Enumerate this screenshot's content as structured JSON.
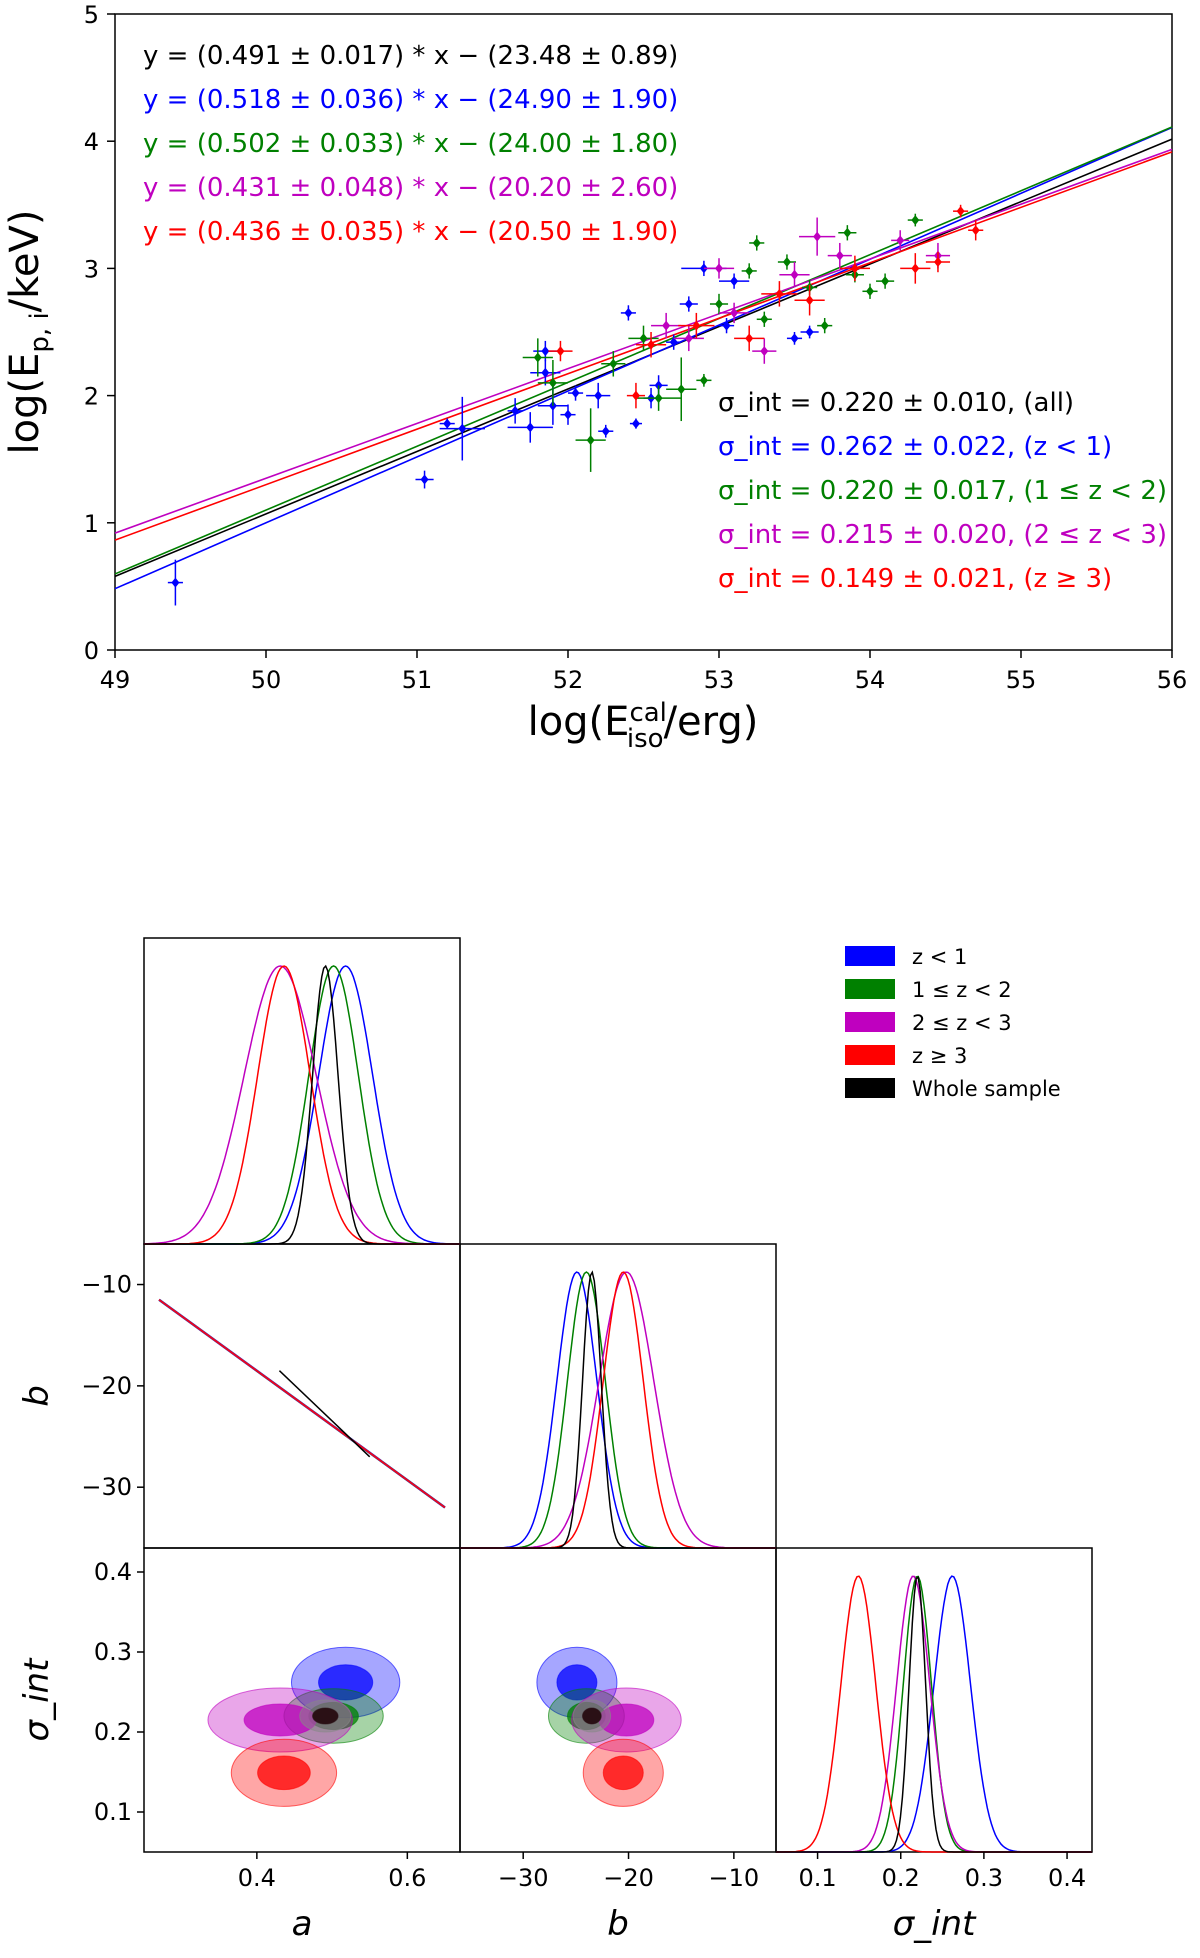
{
  "colors": {
    "blue": "#0000ff",
    "green": "#008000",
    "magenta": "#bf00bf",
    "red": "#ff0000",
    "black": "#000000"
  },
  "chart_data": [
    {
      "type": "scatter",
      "xlabel": "log(E_iso^cal/erg)",
      "ylabel": "log(E_p,i/keV)",
      "xlim": [
        49,
        56
      ],
      "ylim": [
        0,
        5
      ],
      "xticks": [
        "49",
        "50",
        "51",
        "52",
        "53",
        "54",
        "55",
        "56"
      ],
      "yticks": [
        "0",
        "1",
        "2",
        "3",
        "4",
        "5"
      ],
      "fits": [
        {
          "name": "all",
          "color": "black",
          "a": 0.491,
          "b": -23.48,
          "label": "y = (0.491 ± 0.017) * x − (23.48 ± 0.89)"
        },
        {
          "name": "z<1",
          "color": "blue",
          "a": 0.518,
          "b": -24.9,
          "label": "y = (0.518 ± 0.036) * x − (24.90 ± 1.90)"
        },
        {
          "name": "1≤z<2",
          "color": "green",
          "a": 0.502,
          "b": -24.0,
          "label": "y = (0.502 ± 0.033) * x − (24.00 ± 1.80)"
        },
        {
          "name": "2≤z<3",
          "color": "magenta",
          "a": 0.431,
          "b": -20.2,
          "label": "y = (0.431 ± 0.048) * x − (20.20 ± 2.60)"
        },
        {
          "name": "z≥3",
          "color": "red",
          "a": 0.436,
          "b": -20.5,
          "label": "y = (0.436 ± 0.035) * x − (20.50 ± 1.90)"
        }
      ],
      "sigma_labels": [
        {
          "color": "black",
          "text": "σ_int = 0.220 ± 0.010, (all)"
        },
        {
          "color": "blue",
          "text": "σ_int = 0.262 ± 0.022, (z < 1)"
        },
        {
          "color": "green",
          "text": "σ_int = 0.220 ± 0.017, (1 ≤ z < 2)"
        },
        {
          "color": "magenta",
          "text": "σ_int = 0.215 ± 0.020, (2 ≤ z < 3)"
        },
        {
          "color": "red",
          "text": "σ_int = 0.149 ± 0.021, (z ≥ 3)"
        }
      ],
      "points": [
        {
          "c": "blue",
          "x": 49.4,
          "y": 0.53,
          "ex": 0.05,
          "ey": 0.18
        },
        {
          "c": "blue",
          "x": 51.05,
          "y": 1.34,
          "ex": 0.06,
          "ey": 0.07
        },
        {
          "c": "blue",
          "x": 51.2,
          "y": 1.78,
          "ex": 0.05,
          "ey": 0.04
        },
        {
          "c": "blue",
          "x": 51.3,
          "y": 1.74,
          "ex": 0.15,
          "ey": 0.25
        },
        {
          "c": "blue",
          "x": 51.65,
          "y": 1.88,
          "ex": 0.05,
          "ey": 0.1
        },
        {
          "c": "blue",
          "x": 51.75,
          "y": 1.75,
          "ex": 0.15,
          "ey": 0.12
        },
        {
          "c": "blue",
          "x": 51.85,
          "y": 2.35,
          "ex": 0.08,
          "ey": 0.08
        },
        {
          "c": "blue",
          "x": 51.85,
          "y": 2.18,
          "ex": 0.1,
          "ey": 0.1
        },
        {
          "c": "blue",
          "x": 51.9,
          "y": 1.92,
          "ex": 0.1,
          "ey": 0.15
        },
        {
          "c": "blue",
          "x": 52.0,
          "y": 1.85,
          "ex": 0.05,
          "ey": 0.08
        },
        {
          "c": "blue",
          "x": 52.05,
          "y": 2.02,
          "ex": 0.05,
          "ey": 0.06
        },
        {
          "c": "blue",
          "x": 52.25,
          "y": 1.72,
          "ex": 0.05,
          "ey": 0.05
        },
        {
          "c": "blue",
          "x": 52.2,
          "y": 2.0,
          "ex": 0.08,
          "ey": 0.1
        },
        {
          "c": "blue",
          "x": 52.4,
          "y": 2.65,
          "ex": 0.05,
          "ey": 0.06
        },
        {
          "c": "blue",
          "x": 52.45,
          "y": 1.78,
          "ex": 0.04,
          "ey": 0.04
        },
        {
          "c": "blue",
          "x": 52.55,
          "y": 1.98,
          "ex": 0.05,
          "ey": 0.08
        },
        {
          "c": "blue",
          "x": 52.6,
          "y": 2.08,
          "ex": 0.06,
          "ey": 0.08
        },
        {
          "c": "blue",
          "x": 52.7,
          "y": 2.42,
          "ex": 0.05,
          "ey": 0.06
        },
        {
          "c": "blue",
          "x": 52.8,
          "y": 2.72,
          "ex": 0.06,
          "ey": 0.06
        },
        {
          "c": "blue",
          "x": 52.9,
          "y": 3.0,
          "ex": 0.15,
          "ey": 0.06
        },
        {
          "c": "blue",
          "x": 53.05,
          "y": 2.55,
          "ex": 0.05,
          "ey": 0.06
        },
        {
          "c": "blue",
          "x": 53.1,
          "y": 2.9,
          "ex": 0.1,
          "ey": 0.06
        },
        {
          "c": "blue",
          "x": 53.5,
          "y": 2.45,
          "ex": 0.05,
          "ey": 0.05
        },
        {
          "c": "blue",
          "x": 53.6,
          "y": 2.5,
          "ex": 0.06,
          "ey": 0.05
        },
        {
          "c": "green",
          "x": 51.8,
          "y": 2.3,
          "ex": 0.1,
          "ey": 0.15
        },
        {
          "c": "green",
          "x": 51.9,
          "y": 2.1,
          "ex": 0.1,
          "ey": 0.18
        },
        {
          "c": "green",
          "x": 52.15,
          "y": 1.65,
          "ex": 0.1,
          "ey": 0.25
        },
        {
          "c": "green",
          "x": 52.3,
          "y": 2.25,
          "ex": 0.08,
          "ey": 0.1
        },
        {
          "c": "green",
          "x": 52.5,
          "y": 2.45,
          "ex": 0.1,
          "ey": 0.1
        },
        {
          "c": "green",
          "x": 52.6,
          "y": 1.98,
          "ex": 0.15,
          "ey": 0.1
        },
        {
          "c": "green",
          "x": 52.75,
          "y": 2.05,
          "ex": 0.1,
          "ey": 0.25
        },
        {
          "c": "green",
          "x": 52.9,
          "y": 2.12,
          "ex": 0.05,
          "ey": 0.05
        },
        {
          "c": "green",
          "x": 53.0,
          "y": 2.72,
          "ex": 0.06,
          "ey": 0.08
        },
        {
          "c": "green",
          "x": 53.2,
          "y": 2.98,
          "ex": 0.05,
          "ey": 0.06
        },
        {
          "c": "green",
          "x": 53.25,
          "y": 3.2,
          "ex": 0.05,
          "ey": 0.06
        },
        {
          "c": "green",
          "x": 53.3,
          "y": 2.6,
          "ex": 0.05,
          "ey": 0.06
        },
        {
          "c": "green",
          "x": 53.45,
          "y": 3.05,
          "ex": 0.06,
          "ey": 0.06
        },
        {
          "c": "green",
          "x": 53.6,
          "y": 2.85,
          "ex": 0.05,
          "ey": 0.06
        },
        {
          "c": "green",
          "x": 53.7,
          "y": 2.55,
          "ex": 0.05,
          "ey": 0.06
        },
        {
          "c": "green",
          "x": 53.85,
          "y": 3.28,
          "ex": 0.06,
          "ey": 0.06
        },
        {
          "c": "green",
          "x": 53.9,
          "y": 2.95,
          "ex": 0.06,
          "ey": 0.06
        },
        {
          "c": "green",
          "x": 54.0,
          "y": 2.82,
          "ex": 0.05,
          "ey": 0.06
        },
        {
          "c": "green",
          "x": 54.1,
          "y": 2.9,
          "ex": 0.06,
          "ey": 0.06
        },
        {
          "c": "green",
          "x": 54.3,
          "y": 3.38,
          "ex": 0.05,
          "ey": 0.05
        },
        {
          "c": "magenta",
          "x": 52.65,
          "y": 2.55,
          "ex": 0.1,
          "ey": 0.1
        },
        {
          "c": "magenta",
          "x": 52.8,
          "y": 2.45,
          "ex": 0.1,
          "ey": 0.1
        },
        {
          "c": "magenta",
          "x": 53.0,
          "y": 3.0,
          "ex": 0.1,
          "ey": 0.08
        },
        {
          "c": "magenta",
          "x": 53.1,
          "y": 2.65,
          "ex": 0.1,
          "ey": 0.08
        },
        {
          "c": "magenta",
          "x": 53.3,
          "y": 2.35,
          "ex": 0.08,
          "ey": 0.1
        },
        {
          "c": "magenta",
          "x": 53.5,
          "y": 2.95,
          "ex": 0.1,
          "ey": 0.1
        },
        {
          "c": "magenta",
          "x": 53.65,
          "y": 3.25,
          "ex": 0.12,
          "ey": 0.15
        },
        {
          "c": "magenta",
          "x": 53.8,
          "y": 3.1,
          "ex": 0.08,
          "ey": 0.1
        },
        {
          "c": "magenta",
          "x": 54.2,
          "y": 3.22,
          "ex": 0.06,
          "ey": 0.08
        },
        {
          "c": "magenta",
          "x": 54.45,
          "y": 3.1,
          "ex": 0.08,
          "ey": 0.1
        },
        {
          "c": "red",
          "x": 51.95,
          "y": 2.35,
          "ex": 0.08,
          "ey": 0.08
        },
        {
          "c": "red",
          "x": 52.45,
          "y": 2.0,
          "ex": 0.06,
          "ey": 0.1
        },
        {
          "c": "red",
          "x": 52.55,
          "y": 2.4,
          "ex": 0.1,
          "ey": 0.1
        },
        {
          "c": "red",
          "x": 52.85,
          "y": 2.55,
          "ex": 0.12,
          "ey": 0.1
        },
        {
          "c": "red",
          "x": 53.2,
          "y": 2.45,
          "ex": 0.1,
          "ey": 0.1
        },
        {
          "c": "red",
          "x": 53.4,
          "y": 2.8,
          "ex": 0.12,
          "ey": 0.1
        },
        {
          "c": "red",
          "x": 53.6,
          "y": 2.75,
          "ex": 0.1,
          "ey": 0.12
        },
        {
          "c": "red",
          "x": 53.9,
          "y": 3.0,
          "ex": 0.1,
          "ey": 0.1
        },
        {
          "c": "red",
          "x": 54.3,
          "y": 3.0,
          "ex": 0.1,
          "ey": 0.12
        },
        {
          "c": "red",
          "x": 54.45,
          "y": 3.05,
          "ex": 0.08,
          "ey": 0.08
        },
        {
          "c": "red",
          "x": 54.6,
          "y": 3.45,
          "ex": 0.05,
          "ey": 0.05
        },
        {
          "c": "red",
          "x": 54.7,
          "y": 3.3,
          "ex": 0.05,
          "ey": 0.08
        }
      ]
    },
    {
      "type": "corner",
      "params": [
        "a",
        "b",
        "σ_int"
      ],
      "limits": {
        "a": [
          0.25,
          0.67
        ],
        "b": [
          -36,
          -6
        ],
        "sigma": [
          0.05,
          0.43
        ]
      },
      "ticks": {
        "a": [
          "0.4",
          "0.6"
        ],
        "b_x": [
          "−30",
          "−20",
          "−10"
        ],
        "b_y": [
          "−10",
          "−20",
          "−30"
        ],
        "sigma_y": [
          "0.4",
          "0.3",
          "0.2",
          "0.1"
        ],
        "sigma_x": [
          "0.1",
          "0.2",
          "0.3",
          "0.4"
        ]
      },
      "axis_labels": {
        "a": "a",
        "b": "b",
        "sigma": "σ_int"
      },
      "legend": [
        {
          "color": "blue",
          "label": "z < 1"
        },
        {
          "color": "green",
          "label": "1 ≤ z < 2"
        },
        {
          "color": "magenta",
          "label": "2 ≤ z < 3"
        },
        {
          "color": "red",
          "label": "z ≥ 3"
        },
        {
          "color": "black",
          "label": "Whole sample"
        }
      ],
      "series": [
        {
          "name": "z<1",
          "color": "blue",
          "a": [
            0.518,
            0.036
          ],
          "b": [
            -24.9,
            1.9
          ],
          "sigma": [
            0.262,
            0.022
          ]
        },
        {
          "name": "1≤z<2",
          "color": "green",
          "a": [
            0.502,
            0.033
          ],
          "b": [
            -24.0,
            1.8
          ],
          "sigma": [
            0.22,
            0.017
          ]
        },
        {
          "name": "2≤z<3",
          "color": "magenta",
          "a": [
            0.431,
            0.048
          ],
          "b": [
            -20.2,
            2.6
          ],
          "sigma": [
            0.215,
            0.02
          ]
        },
        {
          "name": "z≥3",
          "color": "red",
          "a": [
            0.436,
            0.035
          ],
          "b": [
            -20.5,
            1.9
          ],
          "sigma": [
            0.149,
            0.021
          ]
        },
        {
          "name": "Whole sample",
          "color": "black",
          "a": [
            0.491,
            0.017
          ],
          "b": [
            -23.48,
            0.89
          ],
          "sigma": [
            0.22,
            0.01
          ]
        }
      ]
    }
  ]
}
